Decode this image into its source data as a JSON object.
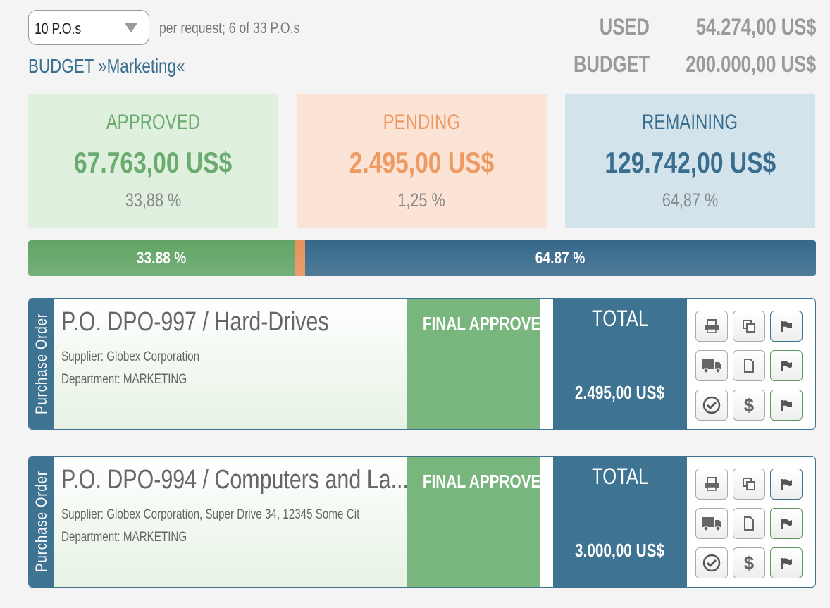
{
  "toolbar": {
    "page_size": "10 P.O.s",
    "summary": "per request; 6 of 33 P.O.s",
    "budget_title": "BUDGET »Marketing«"
  },
  "totals": [
    {
      "label": "USED",
      "value": "54.274,00 US$"
    },
    {
      "label": "BUDGET",
      "value": "200.000,00 US$"
    }
  ],
  "cards": [
    {
      "label": "APPROVED",
      "amount": "67.763,00 US$",
      "percent": "33,88 %",
      "color": "#6aab6f",
      "background": "#dff0de"
    },
    {
      "label": "PENDING",
      "amount": "2.495,00 US$",
      "percent": "1,25 %",
      "color": "#ee9a62",
      "background": "#fbe3d6"
    },
    {
      "label": "REMAINING",
      "amount": "129.742,00 US$",
      "percent": "64,87 %",
      "color": "#3a6e8e",
      "background": "#d3e3ec"
    }
  ],
  "progress": [
    {
      "value": 33.88,
      "label": "33.88 %",
      "color": "#62a566"
    },
    {
      "value": 1.25,
      "color": "#e8915a"
    },
    {
      "value": 64.87,
      "label": "64.87 %",
      "color": "#36688a"
    }
  ],
  "orders": [
    {
      "tab": "Purchase Order",
      "title": "P.O. DPO-997 / Hard-Drives",
      "supplier": "Supplier: Globex Corporation",
      "department": "Department: MARKETING",
      "status": "FINAL APPROVED",
      "total_label": "TOTAL",
      "total": "2.495,00 US$",
      "dollar": "$"
    },
    {
      "tab": "Purchase Order",
      "title": "P.O. DPO-994 / Computers and La...",
      "supplier": "Supplier: Globex Corporation, Super Drive 34, 12345 Some Cit",
      "department": "Department: MARKETING",
      "status": "FINAL APPROVED",
      "total_label": "TOTAL",
      "total": "3.000,00 US$",
      "dollar": "$"
    }
  ]
}
